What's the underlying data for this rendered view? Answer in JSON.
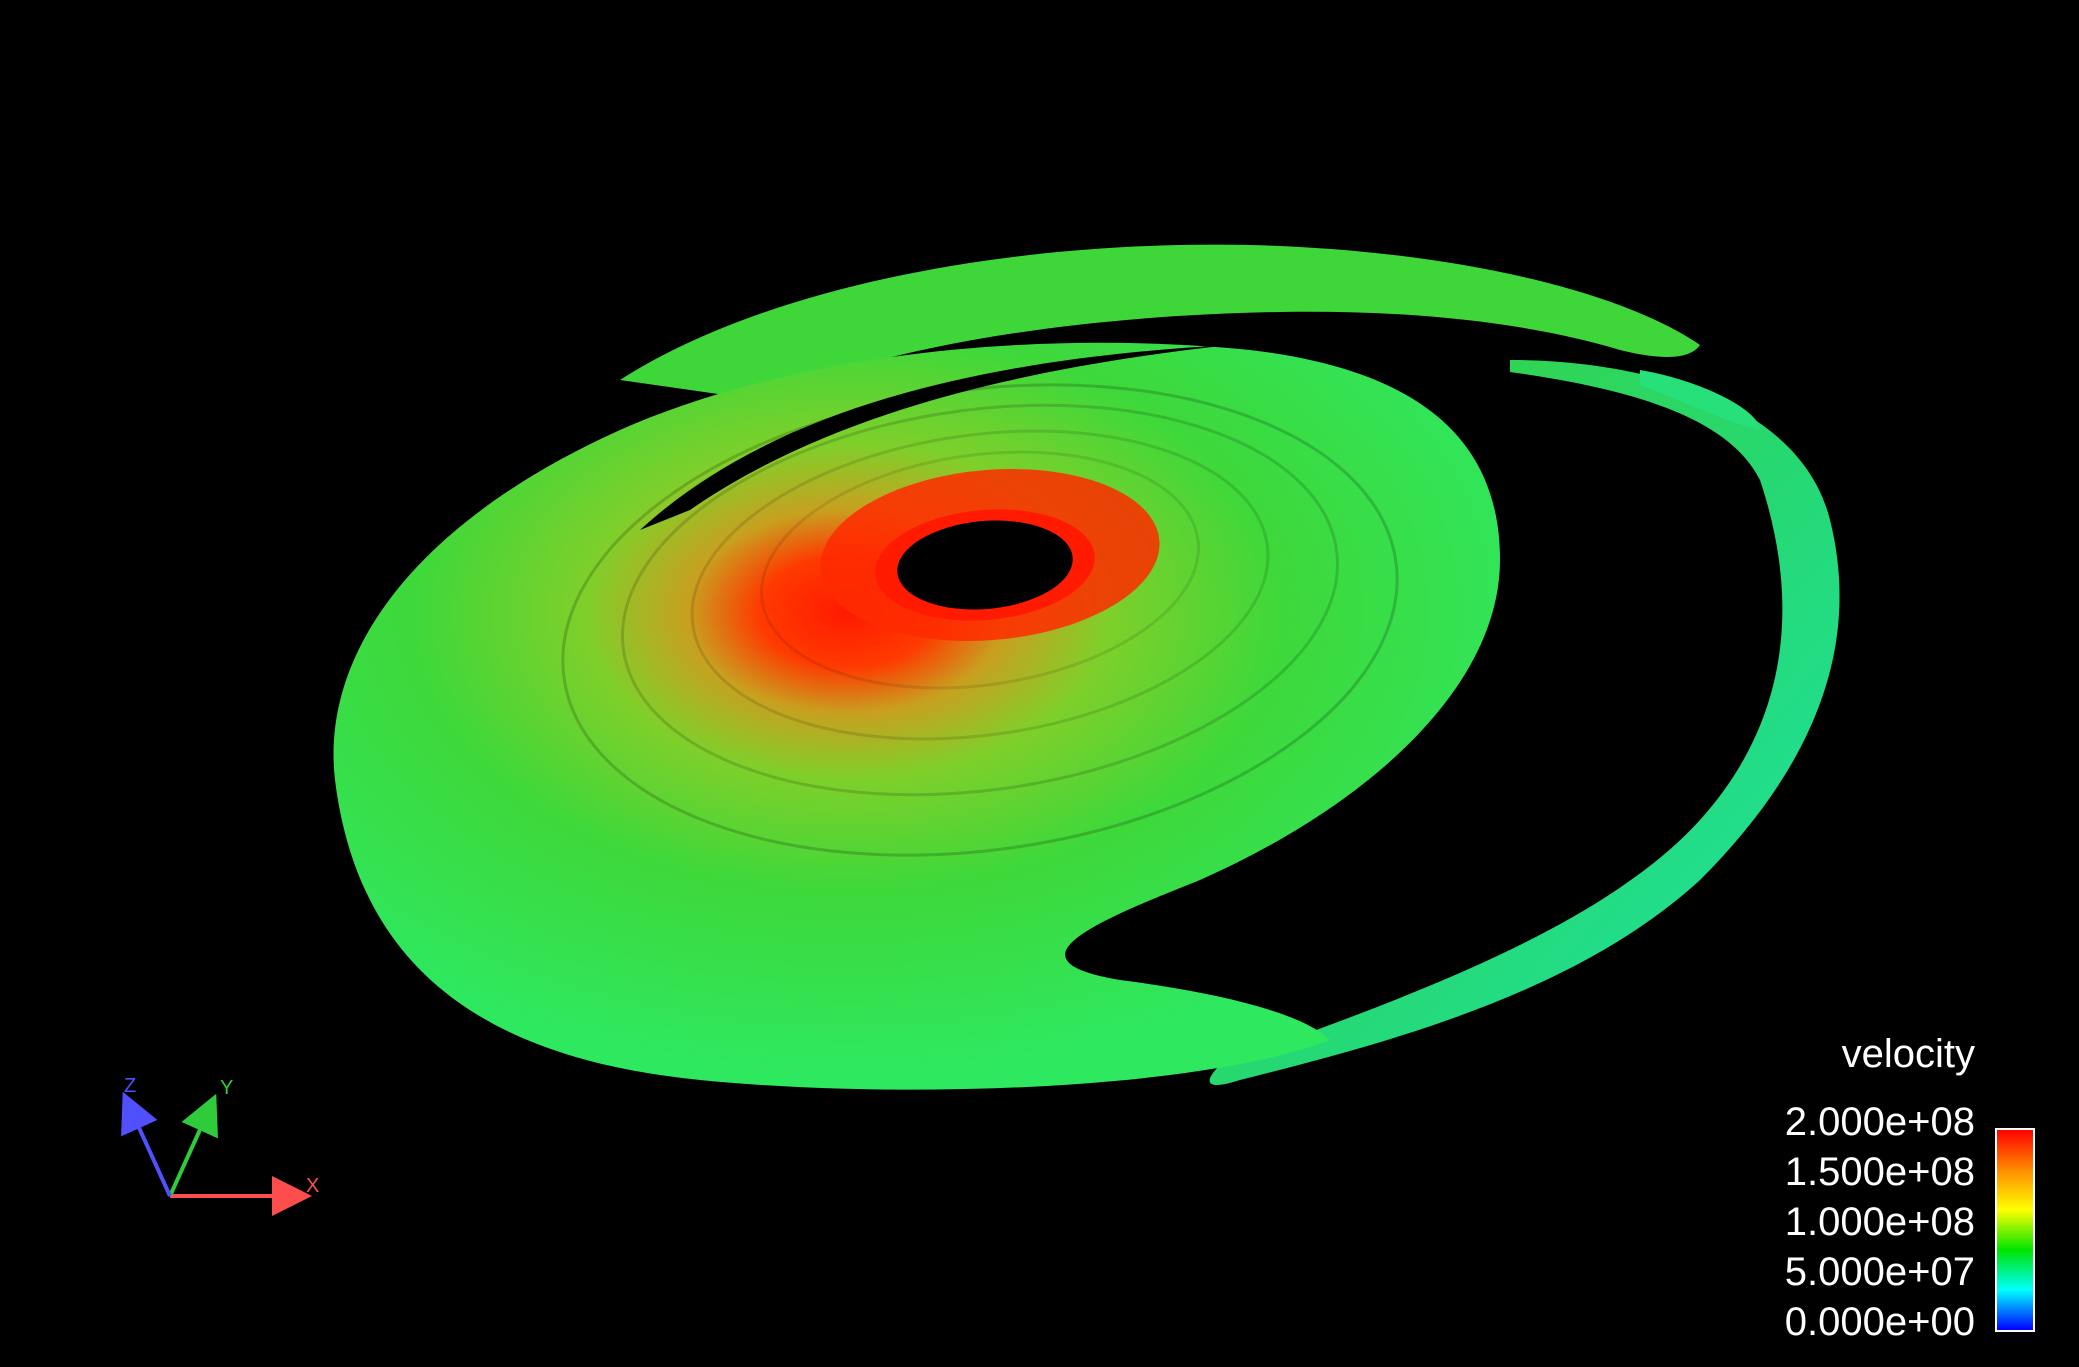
{
  "legend": {
    "title": "velocity",
    "labels": [
      "2.000e+08",
      "1.500e+08",
      "1.000e+08",
      "5.000e+07",
      "0.000e+00"
    ],
    "gradient": [
      "#ff0000",
      "#ff8c00",
      "#ffff00",
      "#00e400",
      "#00ffff",
      "#0000ff"
    ]
  },
  "axes": {
    "x_label": "X",
    "y_label": "Y",
    "z_label": "Z",
    "x_color": "#ff4d4d",
    "y_color": "#2ecc3a",
    "z_color": "#5050ff"
  },
  "colors": {
    "background": "#000000",
    "hot_core": "#ff2a00",
    "disk_mid": "#3fd93a",
    "outer_arm": "#20e8a0"
  }
}
